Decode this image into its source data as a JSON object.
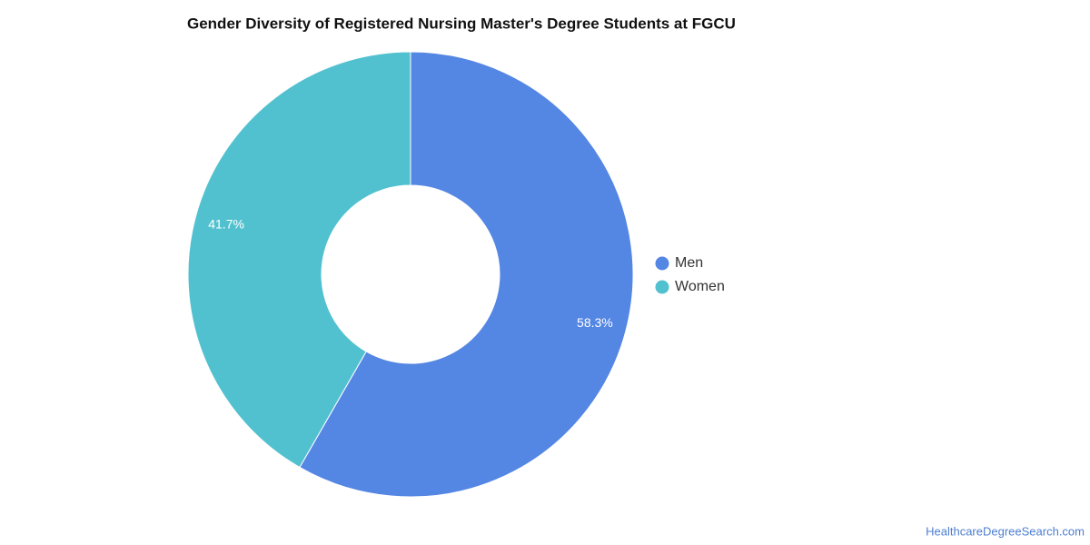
{
  "chart_data": {
    "type": "donut",
    "title": "Gender Diversity of Registered Nursing Master's Degree Students at FGCU",
    "categories": [
      "Men",
      "Women"
    ],
    "values": [
      58.3,
      41.7
    ],
    "value_labels": [
      "58.3%",
      "41.7%"
    ],
    "colors": [
      "#5486e3",
      "#52c1cf"
    ],
    "legend": "right",
    "source": "HealthcareDegreeSearch.com"
  }
}
